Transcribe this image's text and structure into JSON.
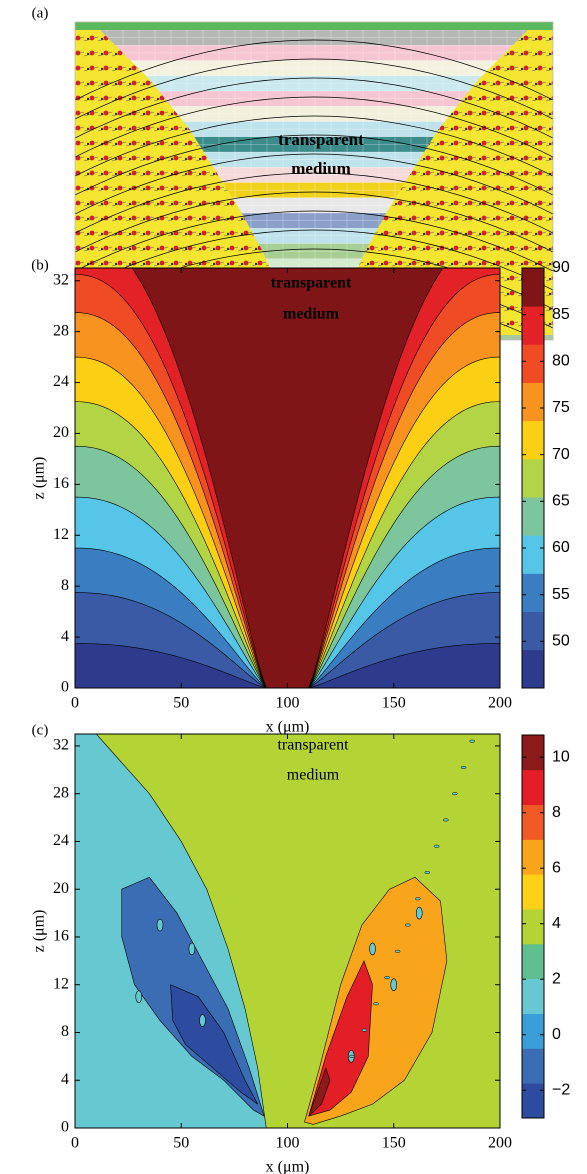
{
  "chart_data": [
    {
      "type": "diagram",
      "panel_label": "(a)",
      "annotation": [
        "transparent",
        "medium"
      ]
    },
    {
      "type": "contour",
      "panel_label": "(b)",
      "annotation": [
        "transparent",
        "medium"
      ],
      "xlabel": "x (μm)",
      "ylabel": "z (μm)",
      "xlim": [
        0,
        200
      ],
      "xticks": [
        0,
        50,
        100,
        150,
        200
      ],
      "ylim": [
        0,
        33
      ],
      "yticks": [
        0,
        4,
        8,
        12,
        16,
        20,
        24,
        28,
        32
      ],
      "colorbar": {
        "clim": [
          45,
          90
        ],
        "ticks": [
          50,
          55,
          60,
          65,
          70,
          75,
          80,
          85,
          90
        ],
        "colormap": [
          "#2e3a8c",
          "#3a5aa5",
          "#3a7ec1",
          "#55c5e8",
          "#7dc59d",
          "#b3d444",
          "#fbcf14",
          "#f7931e",
          "#ef4b24",
          "#e32227",
          "#7f1517"
        ]
      }
    },
    {
      "type": "contour",
      "panel_label": "(c)",
      "annotation": [
        "transparent",
        "medium"
      ],
      "xlabel": "x (μm)",
      "ylabel": "z (μm)",
      "xlim": [
        0,
        200
      ],
      "xticks": [
        0,
        50,
        100,
        150,
        200
      ],
      "ylim": [
        0,
        33
      ],
      "yticks": [
        0,
        4,
        8,
        12,
        16,
        20,
        24,
        28,
        32
      ],
      "colorbar": {
        "clim": [
          -3,
          10.8
        ],
        "ticks": [
          {
            "value": -2,
            "label": "−2"
          },
          0,
          2,
          4,
          6,
          8,
          10
        ],
        "colormap": [
          "#2d4c9f",
          "#3b6db5",
          "#3a9fd8",
          "#66c9d2",
          "#5fbf8f",
          "#b4d334",
          "#fcd116",
          "#f8a51b",
          "#f15a24",
          "#e41e26",
          "#8b1a1a"
        ]
      }
    }
  ]
}
